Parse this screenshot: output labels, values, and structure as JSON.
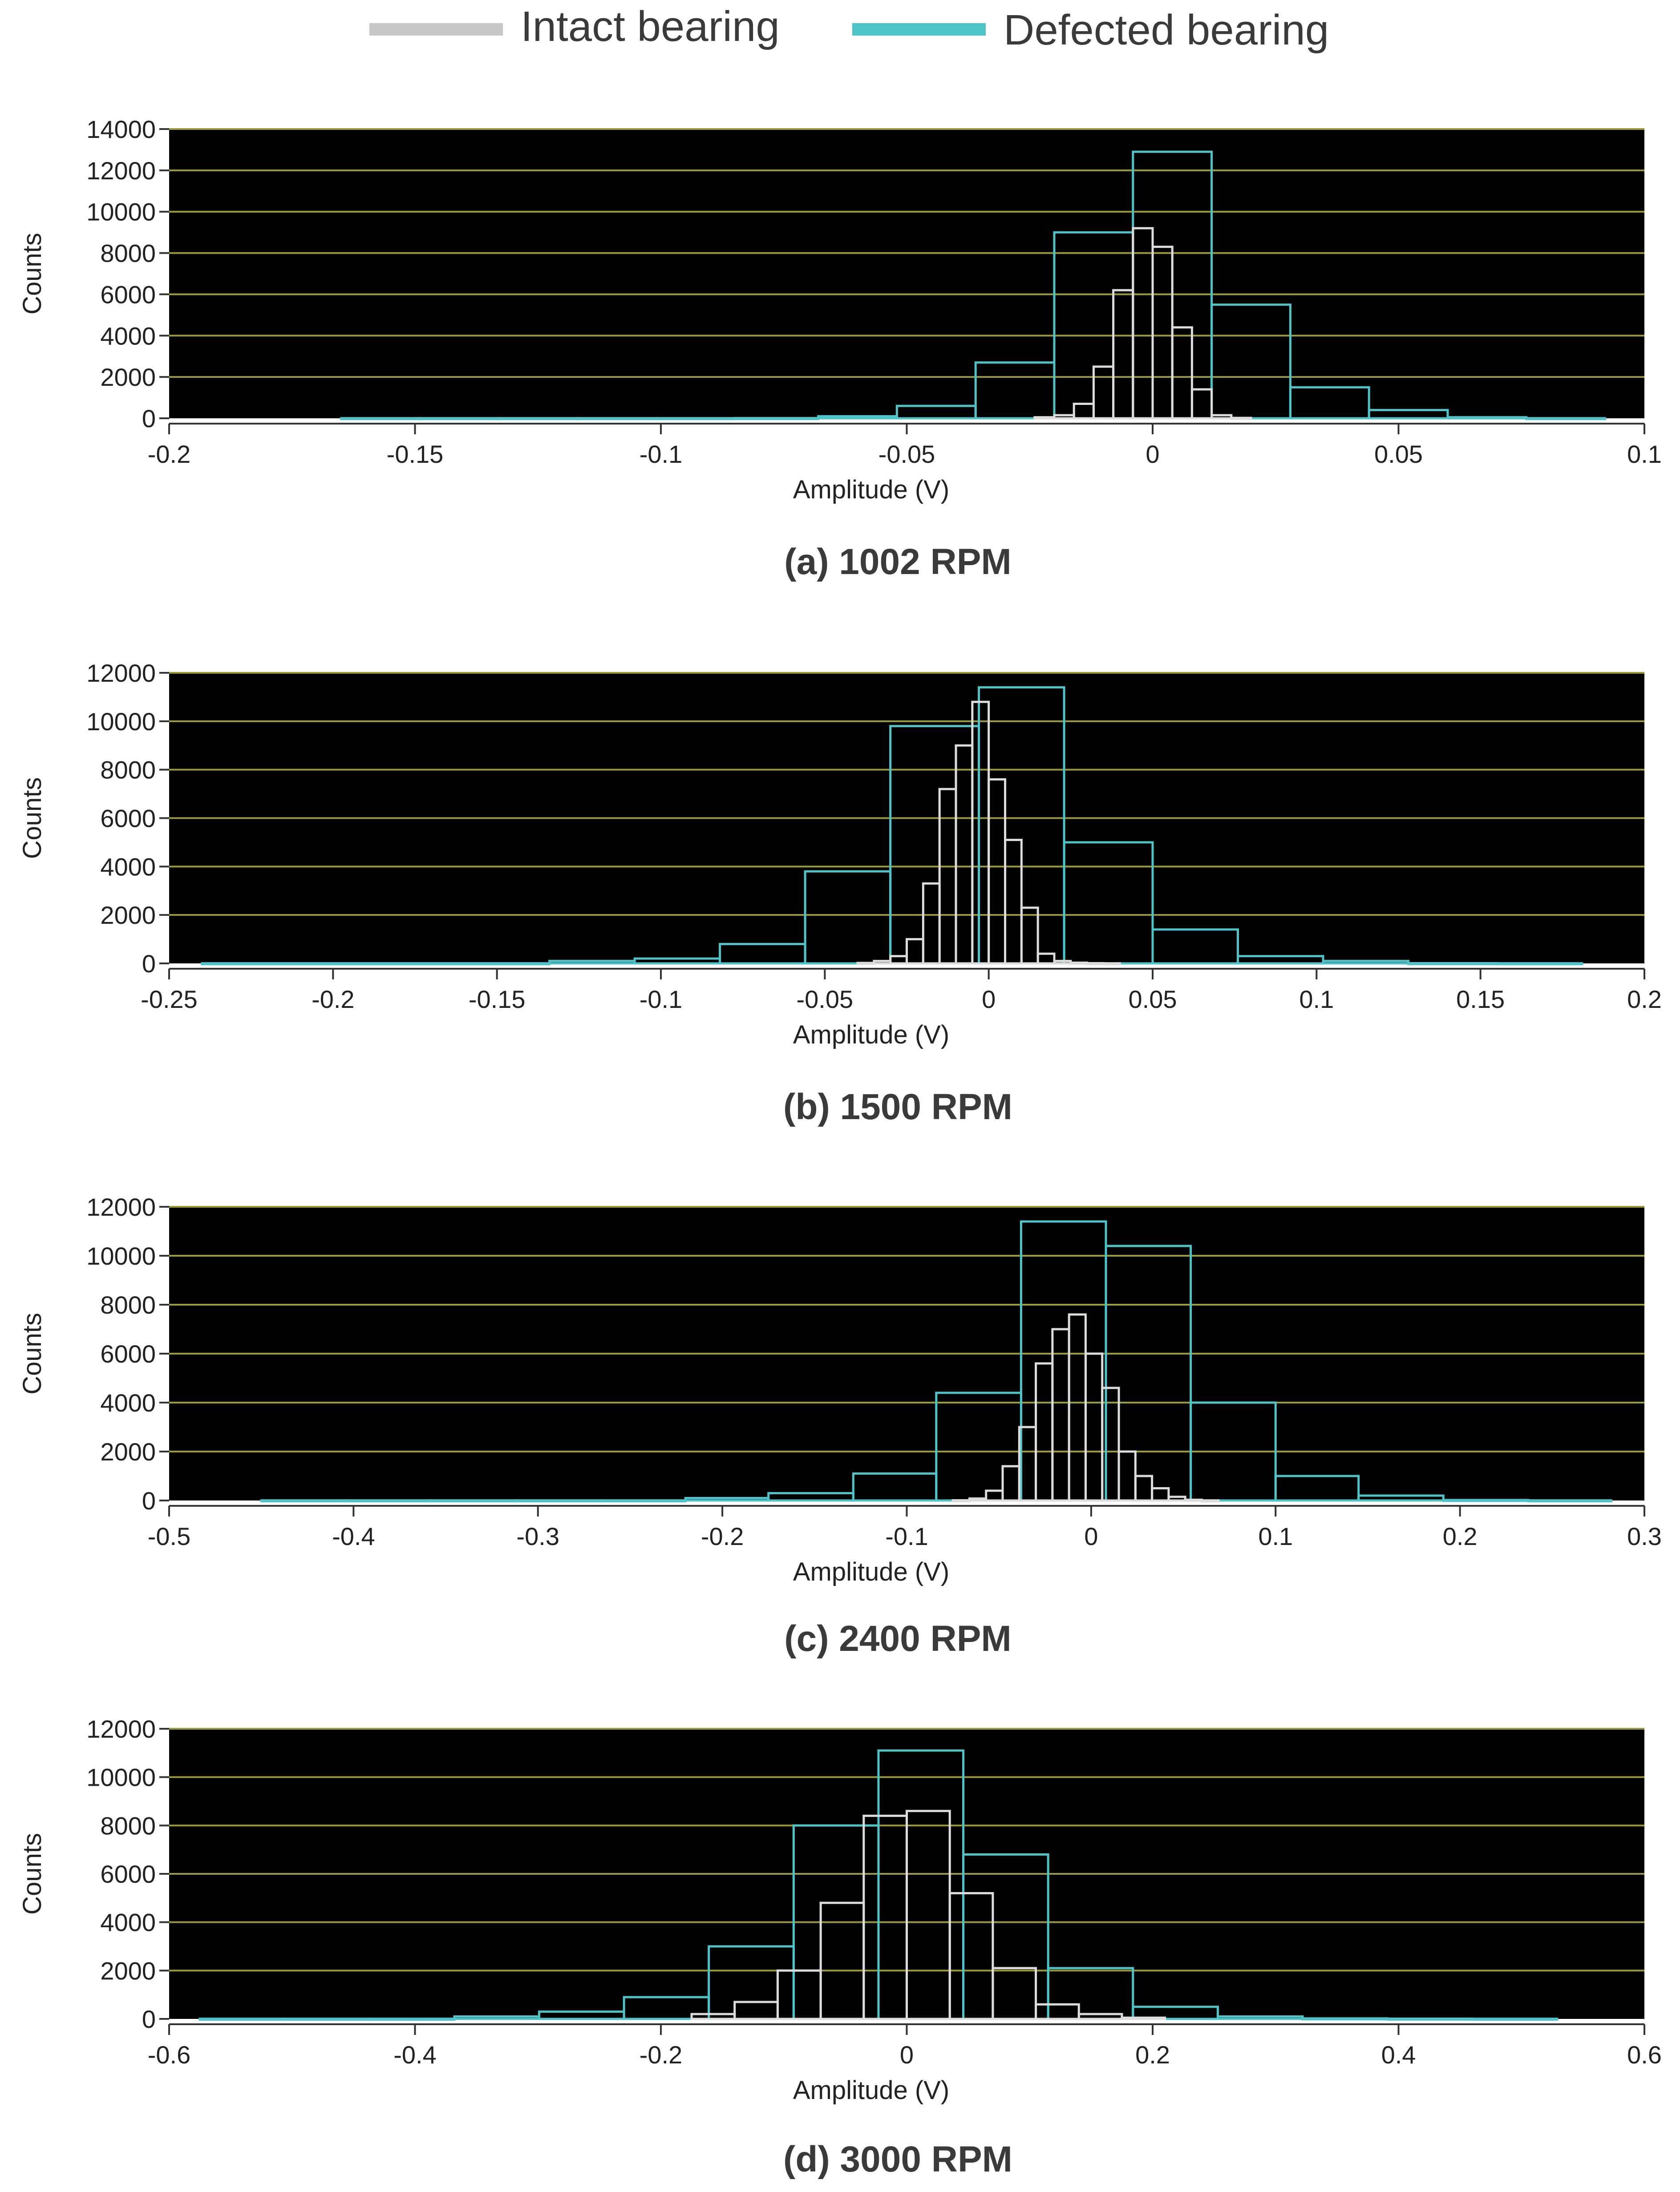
{
  "legend": {
    "placement": "top-center",
    "items": [
      {
        "label": "Intact bearing",
        "color": "#c8c8c8"
      },
      {
        "label": "Defected bearing",
        "color": "#4fc4c8"
      }
    ]
  },
  "colors": {
    "plot_background": "#000000",
    "gridline": "#9a9a3c",
    "intact": "#dcdcdc",
    "defected": "#4fc4c8"
  },
  "chart_data": [
    {
      "type": "bar",
      "title": "(a) 1002 RPM",
      "xlabel": "Amplitude (V)",
      "ylabel": "Counts",
      "xlim": [
        -0.2,
        0.1
      ],
      "ylim": [
        0,
        14000
      ],
      "xticks": [
        "-0.2",
        "-0.15",
        "-0.1",
        "-0.05",
        "0",
        "0.05",
        "0.1"
      ],
      "yticks": [
        "0",
        "2000",
        "4000",
        "6000",
        "8000",
        "10000",
        "12000",
        "14000"
      ],
      "grid": true,
      "series": [
        {
          "name": "Defected bearing",
          "bin_edges": [
            -0.165,
            -0.149,
            -0.133,
            -0.117,
            -0.101,
            -0.085,
            -0.068,
            -0.052,
            -0.036,
            -0.02,
            -0.004,
            0.012,
            0.028,
            0.044,
            0.06,
            0.076,
            0.092
          ],
          "values": [
            5,
            5,
            5,
            5,
            5,
            10,
            100,
            600,
            2700,
            9000,
            12900,
            5500,
            1500,
            400,
            50,
            5
          ]
        },
        {
          "name": "Intact bearing",
          "bin_edges": [
            -0.024,
            -0.02,
            -0.016,
            -0.012,
            -0.008,
            -0.004,
            0.0,
            0.004,
            0.008,
            0.012,
            0.016,
            0.02
          ],
          "values": [
            50,
            150,
            700,
            2500,
            6200,
            9200,
            8300,
            4400,
            1400,
            150,
            20
          ]
        }
      ]
    },
    {
      "type": "bar",
      "title": "(b) 1500 RPM",
      "xlabel": "Amplitude (V)",
      "ylabel": "Counts",
      "xlim": [
        -0.25,
        0.2
      ],
      "ylim": [
        0,
        12000
      ],
      "xticks": [
        "-0.25",
        "-0.2",
        "-0.15",
        "-0.1",
        "-0.05",
        "0",
        "0.05",
        "0.1",
        "0.15",
        "0.2"
      ],
      "yticks": [
        "0",
        "2000",
        "4000",
        "6000",
        "8000",
        "10000",
        "12000"
      ],
      "grid": true,
      "series": [
        {
          "name": "Defected bearing",
          "bin_edges": [
            -0.24,
            -0.213,
            -0.187,
            -0.16,
            -0.134,
            -0.108,
            -0.082,
            -0.056,
            -0.03,
            -0.003,
            0.023,
            0.05,
            0.076,
            0.102,
            0.128,
            0.155,
            0.181
          ],
          "values": [
            5,
            5,
            5,
            5,
            100,
            200,
            800,
            3800,
            9800,
            11400,
            5000,
            1400,
            300,
            100,
            10,
            5
          ]
        },
        {
          "name": "Intact bearing",
          "bin_edges": [
            -0.04,
            -0.035,
            -0.03,
            -0.025,
            -0.02,
            -0.015,
            -0.01,
            -0.005,
            0.0,
            0.005,
            0.01,
            0.015,
            0.02,
            0.025,
            0.03,
            0.035,
            0.04
          ],
          "values": [
            20,
            100,
            300,
            1000,
            3300,
            7200,
            9000,
            10800,
            7600,
            5100,
            2300,
            400,
            100,
            30,
            10,
            5
          ]
        }
      ]
    },
    {
      "type": "bar",
      "title": "(c) 2400 RPM",
      "xlabel": "Amplitude (V)",
      "ylabel": "Counts",
      "xlim": [
        -0.5,
        0.3
      ],
      "ylim": [
        0,
        12000
      ],
      "xticks": [
        "-0.5",
        "-0.4",
        "-0.3",
        "-0.2",
        "-0.1",
        "0",
        "0.1",
        "0.2",
        "0.3"
      ],
      "yticks": [
        "0",
        "2000",
        "4000",
        "6000",
        "8000",
        "10000",
        "12000"
      ],
      "grid": true,
      "series": [
        {
          "name": "Defected bearing",
          "bin_edges": [
            -0.45,
            -0.404,
            -0.358,
            -0.312,
            -0.266,
            -0.22,
            -0.175,
            -0.129,
            -0.084,
            -0.038,
            0.008,
            0.054,
            0.1,
            0.145,
            0.191,
            0.237,
            0.282
          ],
          "values": [
            5,
            5,
            5,
            5,
            5,
            100,
            300,
            1100,
            4400,
            11400,
            10400,
            4000,
            1000,
            200,
            20,
            5
          ]
        },
        {
          "name": "Intact bearing",
          "bin_edges": [
            -0.075,
            -0.066,
            -0.057,
            -0.048,
            -0.039,
            -0.03,
            -0.021,
            -0.012,
            -0.003,
            0.006,
            0.015,
            0.024,
            0.033,
            0.042,
            0.051,
            0.06,
            0.069
          ],
          "values": [
            10,
            80,
            400,
            1400,
            3000,
            5600,
            7000,
            7600,
            6000,
            4600,
            2000,
            1000,
            500,
            150,
            30,
            5
          ]
        }
      ]
    },
    {
      "type": "bar",
      "title": "(d) 3000 RPM",
      "xlabel": "Amplitude (V)",
      "ylabel": "Counts",
      "xlim": [
        -0.6,
        0.6
      ],
      "ylim": [
        0,
        12000
      ],
      "xticks": [
        "-0.6",
        "-0.4",
        "-0.2",
        "0",
        "0.2",
        "0.4",
        "0.6"
      ],
      "yticks": [
        "0",
        "2000",
        "4000",
        "6000",
        "8000",
        "10000",
        "12000"
      ],
      "grid": true,
      "series": [
        {
          "name": "Defected bearing",
          "bin_edges": [
            -0.575,
            -0.506,
            -0.437,
            -0.368,
            -0.299,
            -0.23,
            -0.161,
            -0.092,
            -0.023,
            0.046,
            0.115,
            0.184,
            0.253,
            0.322,
            0.391,
            0.46,
            0.529
          ],
          "values": [
            5,
            5,
            5,
            100,
            300,
            900,
            3000,
            8000,
            11100,
            6800,
            2100,
            500,
            100,
            20,
            10,
            5
          ]
        },
        {
          "name": "Intact bearing",
          "bin_edges": [
            -0.175,
            -0.14,
            -0.105,
            -0.07,
            -0.035,
            0.0,
            0.035,
            0.07,
            0.105,
            0.14,
            0.175,
            0.21
          ],
          "values": [
            200,
            700,
            2000,
            4800,
            8400,
            8600,
            5200,
            2100,
            600,
            200,
            50
          ]
        }
      ]
    }
  ]
}
